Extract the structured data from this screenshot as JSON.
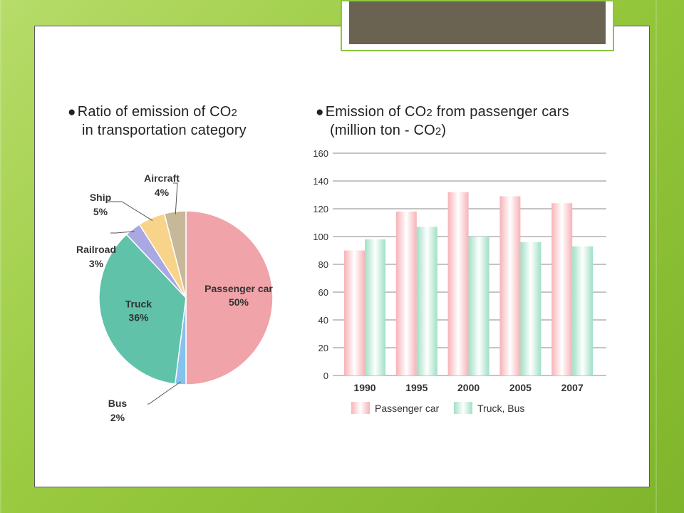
{
  "chart_data": [
    {
      "type": "pie",
      "title": "Ratio of emission of CO2 in transportation category",
      "title_lines": [
        "Ratio of emission of CO",
        "in transportation category"
      ],
      "slices": [
        {
          "label": "Passenger car",
          "value": 50,
          "value_label": "50%",
          "color": "#f0a3a8"
        },
        {
          "label": "Bus",
          "value": 2,
          "value_label": "2%",
          "color": "#86c2ee"
        },
        {
          "label": "Truck",
          "value": 36,
          "value_label": "36%",
          "color": "#5fc2a9"
        },
        {
          "label": "Railroad",
          "value": 3,
          "value_label": "3%",
          "color": "#a9a8e3"
        },
        {
          "label": "Ship",
          "value": 5,
          "value_label": "5%",
          "color": "#f7d48a"
        },
        {
          "label": "Aircraft",
          "value": 4,
          "value_label": "4%",
          "color": "#c7b89a"
        }
      ]
    },
    {
      "type": "bar",
      "title": "Emission of CO2 from passenger cars (million ton - CO2)",
      "title_lines": [
        "Emission of CO",
        " from passenger cars",
        "(million ton - CO",
        ")"
      ],
      "categories": [
        "1990",
        "1995",
        "2000",
        "2005",
        "2007"
      ],
      "series": [
        {
          "name": "Passenger car",
          "values": [
            90,
            118,
            132,
            129,
            124
          ],
          "color": "#f7b3b8"
        },
        {
          "name": "Truck, Bus",
          "values": [
            98,
            107,
            100,
            96,
            93
          ],
          "color": "#9fe0c5"
        }
      ],
      "ylim": [
        0,
        160
      ],
      "yticks": [
        0,
        20,
        40,
        60,
        80,
        100,
        120,
        140,
        160
      ],
      "grid": true,
      "legend": "bottom"
    }
  ]
}
